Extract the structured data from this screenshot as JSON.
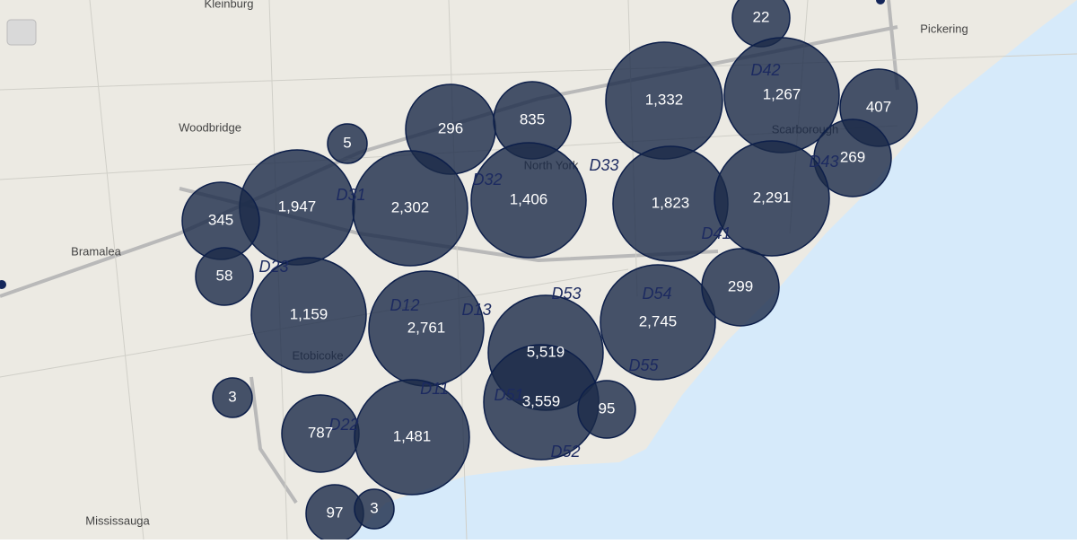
{
  "bubbles": [
    {
      "label": "22"
    },
    {
      "label": "1,332"
    },
    {
      "label": "1,267"
    },
    {
      "label": "407"
    },
    {
      "label": "269"
    },
    {
      "label": "296"
    },
    {
      "label": "835"
    },
    {
      "label": "5"
    },
    {
      "label": "1,947"
    },
    {
      "label": "2,302"
    },
    {
      "label": "1,406"
    },
    {
      "label": "1,823"
    },
    {
      "label": "2,291"
    },
    {
      "label": "345"
    },
    {
      "label": "58"
    },
    {
      "label": "1,159"
    },
    {
      "label": "2,761"
    },
    {
      "label": "5,519"
    },
    {
      "label": "2,745"
    },
    {
      "label": "299"
    },
    {
      "label": "3,559"
    },
    {
      "label": "95"
    },
    {
      "label": "3"
    },
    {
      "label": "787"
    },
    {
      "label": "1,481"
    },
    {
      "label": "97"
    },
    {
      "label": "3"
    }
  ],
  "districts": [
    "D31",
    "D32",
    "D33",
    "D42",
    "D43",
    "D41",
    "D23",
    "D12",
    "D13",
    "D53",
    "D54",
    "D55",
    "D11",
    "D51",
    "D52",
    "D22"
  ],
  "places": [
    "Kleinburg",
    "Woodbridge",
    "Bramalea",
    "Etobicoke",
    "Mississauga",
    "Pickering",
    "Scarborough",
    "North York"
  ]
}
